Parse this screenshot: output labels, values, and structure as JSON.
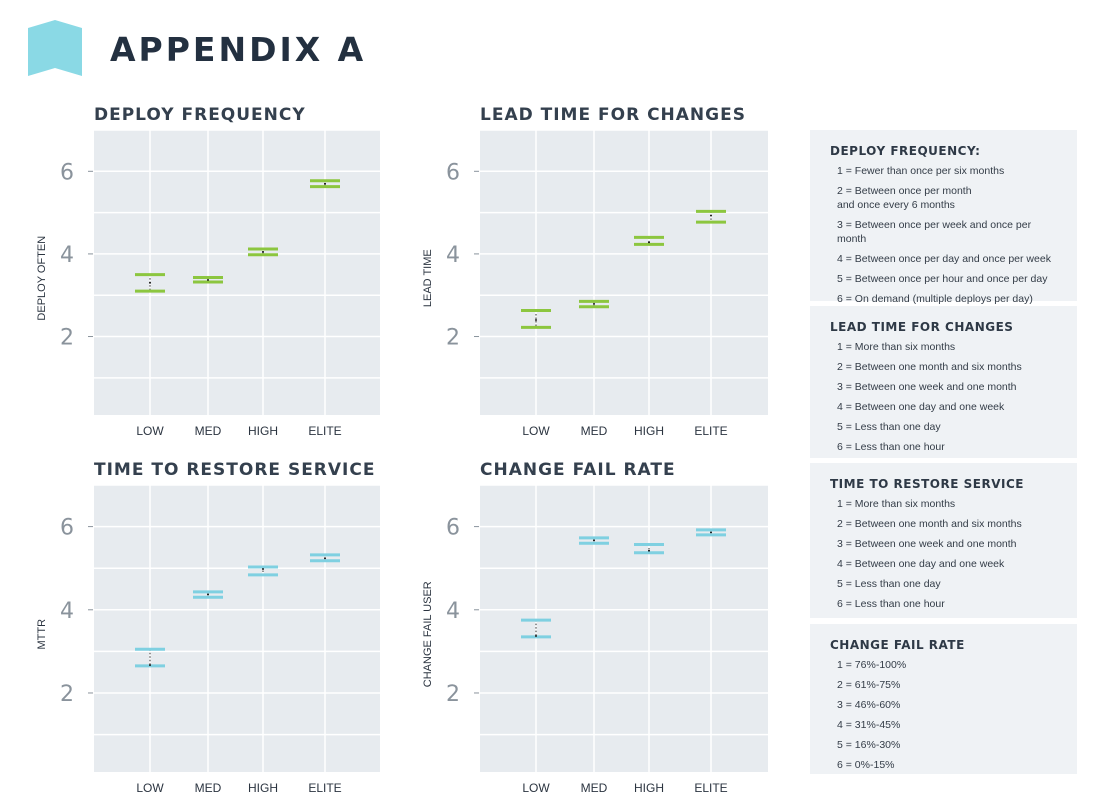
{
  "page": {
    "title": "APPENDIX A",
    "accent_color": "#8ad9e5"
  },
  "chart_data": [
    {
      "type": "box",
      "title": "DEPLOY FREQUENCY",
      "xlabel": "",
      "ylabel": "DEPLOY OFTEN",
      "categories": [
        "LOW",
        "MED",
        "HIGH",
        "ELITE"
      ],
      "yticks": [
        2,
        4,
        6
      ],
      "ylim": [
        0.1,
        7
      ],
      "color": "#8cc63f",
      "boxes": [
        {
          "category": "LOW",
          "low": 3.1,
          "high": 3.5,
          "median": 3.3
        },
        {
          "category": "MED",
          "low": 3.32,
          "high": 3.43,
          "median": 3.37
        },
        {
          "category": "HIGH",
          "low": 3.98,
          "high": 4.12,
          "median": 4.05
        },
        {
          "category": "ELITE",
          "low": 5.63,
          "high": 5.77,
          "median": 5.7
        }
      ]
    },
    {
      "type": "box",
      "title": "LEAD TIME FOR CHANGES",
      "xlabel": "",
      "ylabel": "LEAD TIME",
      "categories": [
        "LOW",
        "MED",
        "HIGH",
        "ELITE"
      ],
      "yticks": [
        2,
        4,
        6
      ],
      "ylim": [
        0.1,
        7
      ],
      "color": "#8cc63f",
      "boxes": [
        {
          "category": "LOW",
          "low": 2.22,
          "high": 2.63,
          "median": 2.4
        },
        {
          "category": "MED",
          "low": 2.72,
          "high": 2.85,
          "median": 2.79
        },
        {
          "category": "HIGH",
          "low": 4.23,
          "high": 4.4,
          "median": 4.28
        },
        {
          "category": "ELITE",
          "low": 4.77,
          "high": 5.03,
          "median": 4.93
        }
      ]
    },
    {
      "type": "box",
      "title": "TIME TO RESTORE SERVICE",
      "xlabel": "",
      "ylabel": "MTTR",
      "categories": [
        "LOW",
        "MED",
        "HIGH",
        "ELITE"
      ],
      "yticks": [
        2,
        4,
        6
      ],
      "ylim": [
        0.1,
        7
      ],
      "color": "#7fd0e1",
      "boxes": [
        {
          "category": "LOW",
          "low": 2.65,
          "high": 3.05,
          "median": 2.67
        },
        {
          "category": "MED",
          "low": 4.3,
          "high": 4.43,
          "median": 4.37
        },
        {
          "category": "HIGH",
          "low": 4.84,
          "high": 5.03,
          "median": 4.98
        },
        {
          "category": "ELITE",
          "low": 5.18,
          "high": 5.32,
          "median": 5.24
        }
      ]
    },
    {
      "type": "box",
      "title": "CHANGE FAIL RATE",
      "xlabel": "",
      "ylabel": "CHANGE FAIL USER",
      "categories": [
        "LOW",
        "MED",
        "HIGH",
        "ELITE"
      ],
      "yticks": [
        2,
        4,
        6
      ],
      "ylim": [
        0.1,
        7
      ],
      "color": "#7fd0e1",
      "boxes": [
        {
          "category": "LOW",
          "low": 3.35,
          "high": 3.75,
          "median": 3.37
        },
        {
          "category": "MED",
          "low": 5.6,
          "high": 5.73,
          "median": 5.67
        },
        {
          "category": "HIGH",
          "low": 5.37,
          "high": 5.57,
          "median": 5.42
        },
        {
          "category": "ELITE",
          "low": 5.8,
          "high": 5.92,
          "median": 5.86
        }
      ]
    }
  ],
  "legend": [
    {
      "title": "DEPLOY FREQUENCY:",
      "items": [
        "1 = Fewer than once per six months",
        "2 = Between once per month\n      and once every 6 months",
        "3 = Between once per week and once per month",
        "4 = Between once per day and once per week",
        "5 = Between once per hour and once per day",
        "6 = On demand (multiple deploys per day)"
      ]
    },
    {
      "title": "LEAD TIME FOR CHANGES",
      "items": [
        "1 = More than six months",
        "2 = Between one month and six months",
        "3 = Between one week and one month",
        "4 = Between one day and one week",
        "5 = Less than one day",
        "6 = Less than one hour"
      ]
    },
    {
      "title": "TIME TO RESTORE SERVICE",
      "items": [
        "1 = More than six months",
        "2 = Between one month and six months",
        "3 = Between one week and one month",
        "4 = Between one day and one week",
        "5 = Less than one day",
        "6 = Less than one hour"
      ]
    },
    {
      "title": "CHANGE FAIL RATE",
      "items": [
        "1 = 76%-100%",
        "2 = 61%-75%",
        "3 = 46%-60%",
        "4 = 31%-45%",
        "5 = 16%-30%",
        "6 = 0%-15%"
      ]
    }
  ]
}
